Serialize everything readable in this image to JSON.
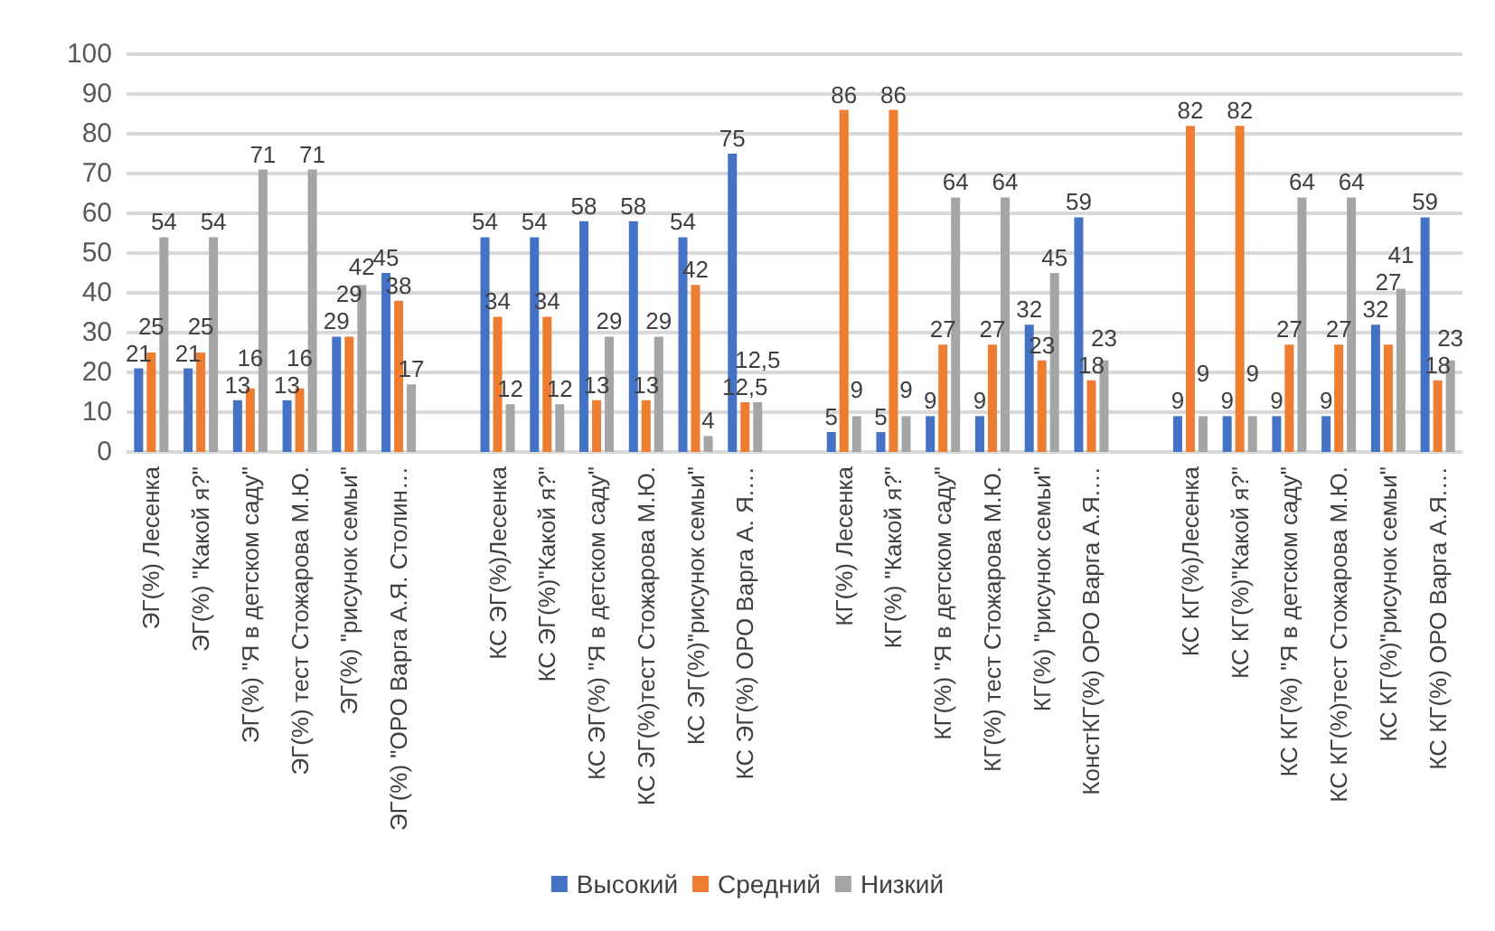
{
  "chart_data": {
    "type": "bar",
    "categories": [
      "ЭГ(%) Лесенка",
      "ЭГ(%) \"Какой я?\"",
      "ЭГ(%) \"Я в детском саду\"",
      "ЭГ(%) тест Стожарова М.Ю.",
      "ЭГ(%) \"рисунок семьи\"",
      "ЭГ(%) \"ОРО Варга А.Я. Столин…",
      null,
      "КС ЭГ(%)Лесенка",
      "КС ЭГ(%)\"Какой я?\"",
      "КС ЭГ(%) \"Я в детском саду\"",
      "КС ЭГ(%)тест Стожарова М.Ю.",
      "КС ЭГ(%)\"рисунок семьи\"",
      "КС ЭГ(%) ОРО Варга А. Я.…",
      null,
      "КГ(%) Лесенка",
      "КГ(%) \"Какой я?\"",
      "КГ(%) \"Я в детском саду\"",
      "КГ(%) тест Стожарова М.Ю.",
      "КГ(%) \"рисунок семьи\"",
      "КонстКГ(%) ОРО Варга А.Я.…",
      null,
      "КС КГ(%)Лесенка",
      "КС КГ(%)\"Какой я?\"",
      "КС КГ(%) \"Я в детском саду\"",
      "КС КГ(%)тест Стожарова М.Ю.",
      "КС КГ(%)\"рисунок семьи\"",
      "КС КГ(%) ОРО Варга А.Я.…"
    ],
    "series": [
      {
        "name": "Высокий",
        "color": "#4472c4",
        "values": [
          21,
          21,
          13,
          13,
          29,
          45,
          null,
          54,
          54,
          58,
          58,
          54,
          75,
          null,
          5,
          5,
          9,
          9,
          32,
          59,
          null,
          9,
          9,
          9,
          9,
          32,
          59
        ],
        "value_labels": [
          "21",
          "21",
          "13",
          "13",
          "29",
          "45",
          null,
          "54",
          "54",
          "58",
          "58",
          "54",
          "75",
          null,
          "5",
          "5",
          "9",
          "9",
          "32",
          "59",
          null,
          "9",
          "9",
          "9",
          "9",
          "32",
          "59"
        ]
      },
      {
        "name": "Средний",
        "color": "#ed7d31",
        "values": [
          25,
          25,
          16,
          16,
          29,
          38,
          null,
          34,
          34,
          13,
          13,
          42,
          12.5,
          null,
          86,
          86,
          27,
          27,
          23,
          18,
          null,
          82,
          82,
          27,
          27,
          27,
          18
        ],
        "value_labels": [
          "25",
          "25",
          "16",
          "16",
          "29",
          "38",
          null,
          "34",
          "34",
          "13",
          "13",
          "42",
          "12,5",
          null,
          "86",
          "86",
          "27",
          "27",
          "23",
          "18",
          null,
          "82",
          "82",
          "27",
          "27",
          "27",
          "18"
        ]
      },
      {
        "name": "Низкий",
        "color": "#a5a5a5",
        "values": [
          54,
          54,
          71,
          71,
          42,
          17,
          null,
          12,
          12,
          29,
          29,
          4,
          12.5,
          null,
          9,
          9,
          64,
          64,
          45,
          23,
          null,
          9,
          9,
          64,
          64,
          41,
          23
        ],
        "value_labels": [
          "54",
          "54",
          "71",
          "71",
          "42",
          "17",
          null,
          "12",
          "12",
          "29",
          "29",
          "4",
          "12,5",
          null,
          "9",
          "9",
          "64",
          "64",
          "45",
          "23",
          null,
          "9",
          "9",
          "64",
          "64",
          "41",
          "23"
        ]
      }
    ],
    "ylim": [
      0,
      100
    ],
    "yticks": [
      0,
      10,
      20,
      30,
      40,
      50,
      60,
      70,
      80,
      90,
      100
    ],
    "grid": "y",
    "legend": "bottom"
  }
}
